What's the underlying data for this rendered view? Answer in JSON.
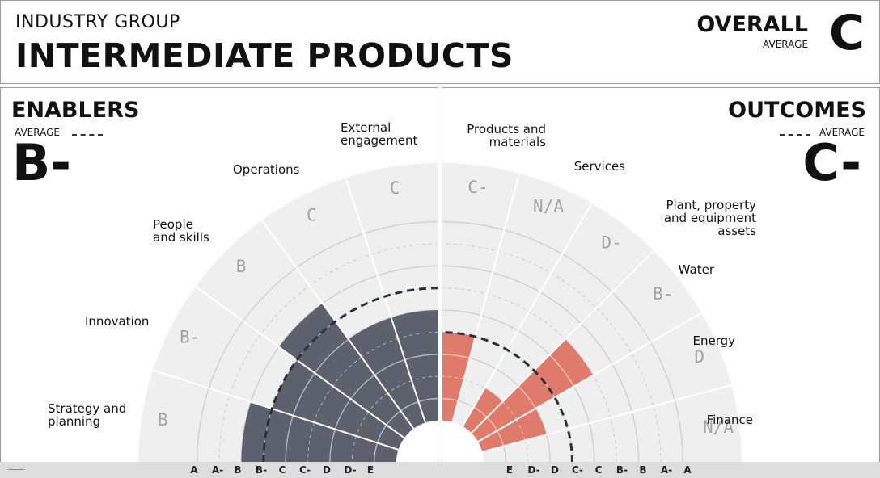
{
  "header": {
    "group_label": "INDUSTRY GROUP",
    "group_name": "INTERMEDIATE PRODUCTS",
    "overall_label": "OVERALL",
    "overall_sub": "AVERAGE",
    "overall_grade": "C"
  },
  "enablers": {
    "title": "ENABLERS",
    "avg_label": "AVERAGE",
    "grade": "B-"
  },
  "outcomes": {
    "title": "OUTCOMES",
    "avg_label": "AVERAGE",
    "grade": "C-"
  },
  "colors": {
    "enablers_bar": "#5c616d",
    "outcomes_bar": "#e07a6a",
    "background_band": "#efefef",
    "grid": "#d2d2d2",
    "avg_line": "#2c2f3d"
  },
  "chart_data": [
    {
      "type": "polar-bar",
      "title": "ENABLERS",
      "scale": [
        "A",
        "A-",
        "B",
        "B-",
        "C",
        "C-",
        "D",
        "D-",
        "E"
      ],
      "categories": [
        "Strategy and planning",
        "Innovation",
        "People and skills",
        "Operations",
        "External engagement"
      ],
      "category_labels": [
        [
          "Strategy and",
          "planning"
        ],
        [
          "Innovation"
        ],
        [
          "People",
          "and skills"
        ],
        [
          "Operations"
        ],
        [
          "External",
          "engagement"
        ]
      ],
      "grades": [
        "B",
        "B-",
        "B",
        "C",
        "C"
      ],
      "values": [
        2,
        3,
        2,
        4,
        4
      ],
      "average": "B-",
      "average_value": 3
    },
    {
      "type": "polar-bar",
      "title": "OUTCOMES",
      "scale": [
        "E",
        "D-",
        "D",
        "C-",
        "C",
        "B-",
        "B",
        "A-",
        "A"
      ],
      "categories": [
        "Products and materials",
        "Services",
        "Plant, property and equipment assets",
        "Water",
        "Energy",
        "Finance"
      ],
      "category_labels": [
        [
          "Products and",
          "materials"
        ],
        [
          "Services"
        ],
        [
          "Plant, property",
          "and equipment",
          "assets"
        ],
        [
          "Water"
        ],
        [
          "Energy"
        ],
        [
          "Finance"
        ]
      ],
      "grades": [
        "C-",
        "N/A",
        "D-",
        "B-",
        "D",
        "N/A"
      ],
      "values": [
        5,
        null,
        7,
        3,
        6,
        null
      ],
      "average": "C-",
      "average_value": 5
    }
  ]
}
